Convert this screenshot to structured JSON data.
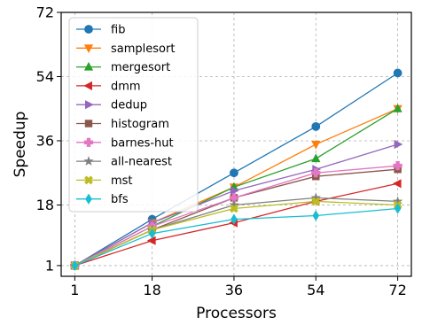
{
  "chart_data": {
    "type": "line",
    "title": "",
    "xlabel": "Processors",
    "ylabel": "Speedup",
    "x": [
      1,
      18,
      36,
      54,
      72
    ],
    "xlim": [
      -2,
      75
    ],
    "ylim": [
      -2,
      72
    ],
    "xticks": [
      "1",
      "18",
      "36",
      "54",
      "72"
    ],
    "yticks": [
      "1",
      "18",
      "36",
      "54",
      "72"
    ],
    "grid": true,
    "legend_position": "upper-left",
    "series": [
      {
        "name": "fib",
        "color": "#1f77b4",
        "marker": "circle",
        "values": [
          1,
          14,
          27,
          40,
          55
        ]
      },
      {
        "name": "samplesort",
        "color": "#ff7f0e",
        "marker": "triangle-down",
        "values": [
          1,
          13,
          23,
          35,
          45
        ]
      },
      {
        "name": "mergesort",
        "color": "#2ca02c",
        "marker": "triangle-up",
        "values": [
          1,
          12,
          23,
          31,
          45
        ]
      },
      {
        "name": "dmm",
        "color": "#d62728",
        "marker": "triangle-left",
        "values": [
          1,
          8,
          13,
          19,
          24
        ]
      },
      {
        "name": "dedup",
        "color": "#9467bd",
        "marker": "triangle-right",
        "values": [
          1,
          13,
          22,
          28,
          35
        ]
      },
      {
        "name": "histogram",
        "color": "#8c564b",
        "marker": "square",
        "values": [
          1,
          11,
          20,
          26,
          28
        ]
      },
      {
        "name": "barnes-hut",
        "color": "#e377c2",
        "marker": "plus",
        "values": [
          1,
          12,
          20,
          27,
          29
        ]
      },
      {
        "name": "all-nearest",
        "color": "#7f7f7f",
        "marker": "star",
        "values": [
          1,
          11,
          18,
          20,
          19
        ]
      },
      {
        "name": "mst",
        "color": "#bcbd22",
        "marker": "x",
        "values": [
          1,
          11,
          17,
          19,
          18
        ]
      },
      {
        "name": "bfs",
        "color": "#17becf",
        "marker": "diamond",
        "values": [
          1,
          10,
          14,
          15,
          17
        ]
      }
    ]
  }
}
